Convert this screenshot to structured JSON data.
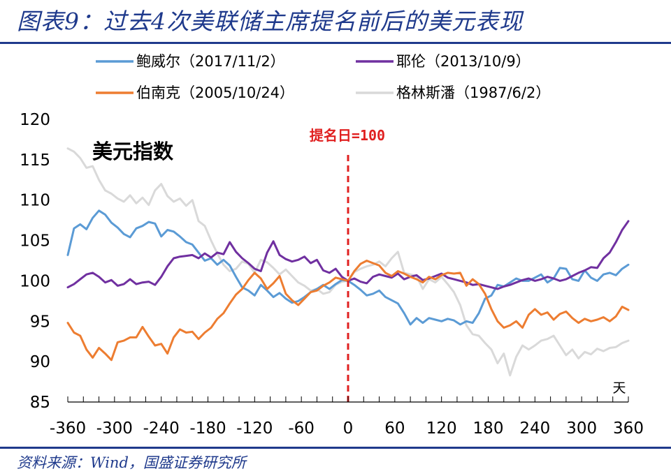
{
  "figure_title": "图表9：过去4次美联储主席提名前后的美元表现",
  "source": "资料来源：Wind，国盛证券研究所",
  "colors": {
    "frame": "#1f3a8c",
    "marker": "#e02020"
  },
  "chart_data": {
    "type": "line",
    "annotation_title": "美元指数",
    "xlabel": "天",
    "ylabel": "",
    "xlim": [
      -360,
      360
    ],
    "ylim": [
      85,
      120
    ],
    "grid": false,
    "legend_position": "top",
    "x_ticks": [
      "-360",
      "-300",
      "-240",
      "-180",
      "-120",
      "-60",
      "0",
      "60",
      "120",
      "180",
      "240",
      "300",
      "360"
    ],
    "y_ticks": [
      "85",
      "90",
      "95",
      "100",
      "105",
      "110",
      "115",
      "120"
    ],
    "marker": {
      "x": 0,
      "label": "提名日=100"
    },
    "series": [
      {
        "name": "鲍威尔（2017/11/2）",
        "color": "#5b9bd5",
        "x": [
          -360,
          -352,
          -344,
          -336,
          -328,
          -320,
          -312,
          -304,
          -296,
          -288,
          -280,
          -272,
          -264,
          -256,
          -248,
          -240,
          -232,
          -224,
          -216,
          -208,
          -200,
          -192,
          -184,
          -176,
          -168,
          -160,
          -152,
          -144,
          -136,
          -128,
          -120,
          -112,
          -104,
          -96,
          -88,
          -80,
          -72,
          -64,
          -56,
          -48,
          -40,
          -32,
          -24,
          -16,
          -8,
          0,
          8,
          16,
          24,
          32,
          40,
          48,
          56,
          64,
          72,
          80,
          88,
          96,
          104,
          112,
          120,
          128,
          136,
          144,
          152,
          160,
          168,
          176,
          184,
          192,
          200,
          208,
          216,
          224,
          232,
          240,
          248,
          256,
          264,
          272,
          280,
          288,
          296,
          304,
          312,
          320,
          328,
          336,
          344,
          352,
          360
        ],
        "y": [
          103.2,
          106.5,
          107.0,
          106.4,
          107.8,
          108.7,
          108.2,
          107.2,
          106.6,
          105.8,
          105.4,
          106.5,
          106.8,
          107.3,
          107.1,
          105.5,
          106.3,
          106.1,
          105.5,
          104.8,
          104.5,
          103.5,
          102.5,
          102.8,
          102.0,
          102.6,
          101.9,
          100.5,
          99.2,
          98.8,
          98.2,
          99.5,
          98.8,
          98.0,
          98.5,
          97.8,
          97.3,
          97.5,
          98.0,
          98.6,
          99.0,
          99.5,
          99.0,
          99.6,
          100.1,
          100.0,
          99.5,
          98.9,
          98.2,
          98.4,
          98.8,
          98.0,
          97.6,
          97.2,
          96.0,
          94.6,
          95.4,
          94.8,
          95.4,
          95.2,
          95.0,
          95.3,
          95.1,
          94.6,
          95.0,
          94.8,
          96.0,
          97.8,
          98.2,
          99.5,
          99.3,
          99.8,
          100.3,
          100.0,
          100.0,
          100.4,
          100.8,
          99.8,
          100.3,
          101.6,
          101.5,
          100.2,
          100.0,
          101.3,
          100.4,
          100.0,
          100.8,
          101.0,
          100.7,
          101.5,
          102.0
        ]
      },
      {
        "name": "耶伦（2013/10/9）",
        "color": "#7030a0",
        "x": [
          -360,
          -352,
          -344,
          -336,
          -328,
          -320,
          -312,
          -304,
          -296,
          -288,
          -280,
          -272,
          -264,
          -256,
          -248,
          -240,
          -232,
          -224,
          -216,
          -208,
          -200,
          -192,
          -184,
          -176,
          -168,
          -160,
          -152,
          -144,
          -136,
          -128,
          -120,
          -112,
          -104,
          -96,
          -88,
          -80,
          -72,
          -64,
          -56,
          -48,
          -40,
          -32,
          -24,
          -16,
          -8,
          0,
          8,
          16,
          24,
          32,
          40,
          48,
          56,
          64,
          72,
          80,
          88,
          96,
          104,
          112,
          120,
          128,
          136,
          144,
          152,
          160,
          168,
          176,
          184,
          192,
          200,
          208,
          216,
          224,
          232,
          240,
          248,
          256,
          264,
          272,
          280,
          288,
          296,
          304,
          312,
          320,
          328,
          336,
          344,
          352,
          360
        ],
        "y": [
          99.2,
          99.6,
          100.2,
          100.8,
          101.0,
          100.5,
          99.8,
          100.1,
          99.4,
          99.6,
          100.2,
          99.6,
          99.8,
          99.9,
          99.5,
          100.5,
          101.8,
          102.8,
          103.0,
          103.1,
          103.2,
          102.8,
          103.4,
          102.9,
          103.5,
          103.3,
          104.8,
          103.6,
          102.8,
          102.2,
          101.5,
          101.2,
          103.5,
          104.9,
          103.2,
          102.7,
          102.4,
          102.6,
          103.0,
          102.2,
          102.6,
          101.3,
          101.0,
          101.5,
          100.5,
          100.0,
          100.3,
          99.9,
          99.7,
          100.5,
          100.8,
          100.6,
          100.4,
          100.9,
          100.2,
          100.5,
          100.7,
          100.1,
          100.3,
          100.6,
          100.9,
          100.4,
          100.2,
          100.0,
          99.8,
          99.5,
          99.6,
          99.4,
          99.2,
          99.0,
          99.3,
          99.5,
          99.8,
          100.1,
          100.3,
          100.0,
          100.2,
          100.5,
          100.3,
          100.0,
          100.2,
          100.6,
          101.0,
          101.3,
          101.7,
          101.6,
          102.8,
          103.5,
          104.8,
          106.3,
          107.4
        ]
      },
      {
        "name": "伯南克（2005/10/24）",
        "color": "#ed7d31",
        "x": [
          -360,
          -352,
          -344,
          -336,
          -328,
          -320,
          -312,
          -304,
          -296,
          -288,
          -280,
          -272,
          -264,
          -256,
          -248,
          -240,
          -232,
          -224,
          -216,
          -208,
          -200,
          -192,
          -184,
          -176,
          -168,
          -160,
          -152,
          -144,
          -136,
          -128,
          -120,
          -112,
          -104,
          -96,
          -88,
          -80,
          -72,
          -64,
          -56,
          -48,
          -40,
          -32,
          -24,
          -16,
          -8,
          0,
          8,
          16,
          24,
          32,
          40,
          48,
          56,
          64,
          72,
          80,
          88,
          96,
          104,
          112,
          120,
          128,
          136,
          144,
          152,
          160,
          168,
          176,
          184,
          192,
          200,
          208,
          216,
          224,
          232,
          240,
          248,
          256,
          264,
          272,
          280,
          288,
          296,
          304,
          312,
          320,
          328,
          336,
          344,
          352,
          360
        ],
        "y": [
          94.8,
          93.6,
          93.2,
          91.5,
          90.5,
          91.7,
          91.0,
          90.2,
          92.4,
          92.6,
          93.0,
          93.0,
          94.3,
          93.1,
          92.0,
          92.2,
          91.0,
          93.0,
          94.0,
          93.6,
          93.7,
          92.8,
          93.6,
          94.2,
          95.3,
          96.0,
          97.2,
          98.3,
          99.0,
          100.1,
          101.0,
          100.3,
          99.0,
          99.7,
          100.6,
          98.4,
          97.6,
          97.0,
          97.8,
          98.6,
          98.8,
          99.4,
          99.8,
          100.4,
          100.2,
          100.0,
          101.2,
          102.1,
          102.5,
          102.2,
          101.9,
          101.0,
          100.6,
          101.2,
          100.9,
          100.5,
          100.2,
          99.8,
          100.5,
          100.2,
          100.7,
          101.0,
          100.9,
          101.0,
          99.4,
          100.2,
          99.6,
          98.4,
          96.5,
          95.0,
          94.2,
          94.5,
          95.0,
          94.2,
          95.8,
          96.5,
          95.8,
          96.1,
          95.2,
          95.9,
          96.2,
          95.4,
          94.8,
          95.3,
          95.0,
          95.2,
          95.5,
          95.0,
          95.6,
          96.8,
          96.4
        ]
      },
      {
        "name": "格林斯潘（1987/6/2）",
        "color": "#d9d9d9",
        "x": [
          -360,
          -352,
          -344,
          -336,
          -328,
          -320,
          -312,
          -304,
          -296,
          -288,
          -280,
          -272,
          -264,
          -256,
          -248,
          -240,
          -232,
          -224,
          -216,
          -208,
          -200,
          -192,
          -184,
          -176,
          -168,
          -160,
          -152,
          -144,
          -136,
          -128,
          -120,
          -112,
          -104,
          -96,
          -88,
          -80,
          -72,
          -64,
          -56,
          -48,
          -40,
          -32,
          -24,
          -16,
          -8,
          0,
          8,
          16,
          24,
          32,
          40,
          48,
          56,
          64,
          72,
          80,
          88,
          96,
          104,
          112,
          120,
          128,
          136,
          144,
          152,
          160,
          168,
          176,
          184,
          192,
          200,
          208,
          216,
          224,
          232,
          240,
          248,
          256,
          264,
          272,
          280,
          288,
          296,
          304,
          312,
          320,
          328,
          336,
          344,
          352,
          360
        ],
        "y": [
          116.4,
          116.0,
          115.2,
          114.0,
          114.2,
          112.5,
          111.2,
          110.8,
          110.2,
          109.8,
          110.6,
          109.6,
          110.3,
          109.4,
          111.2,
          112.0,
          110.5,
          109.8,
          110.2,
          109.3,
          110.0,
          107.4,
          106.8,
          105.0,
          103.4,
          102.0,
          101.2,
          101.5,
          102.4,
          102.1,
          101.0,
          102.6,
          102.3,
          101.6,
          100.8,
          101.4,
          100.6,
          99.8,
          99.4,
          98.8,
          99.0,
          98.4,
          98.6,
          99.5,
          99.9,
          100.0,
          101.1,
          101.5,
          101.8,
          102.0,
          102.4,
          101.8,
          102.8,
          103.6,
          101.0,
          100.8,
          100.6,
          99.0,
          100.2,
          99.8,
          100.5,
          99.6,
          98.6,
          97.0,
          94.5,
          93.4,
          93.2,
          92.3,
          91.5,
          89.8,
          91.0,
          88.3,
          90.6,
          92.0,
          91.5,
          92.0,
          92.6,
          92.8,
          93.2,
          92.0,
          90.8,
          91.5,
          90.4,
          91.2,
          90.9,
          91.6,
          91.3,
          91.7,
          91.8,
          92.3,
          92.6
        ]
      }
    ]
  }
}
